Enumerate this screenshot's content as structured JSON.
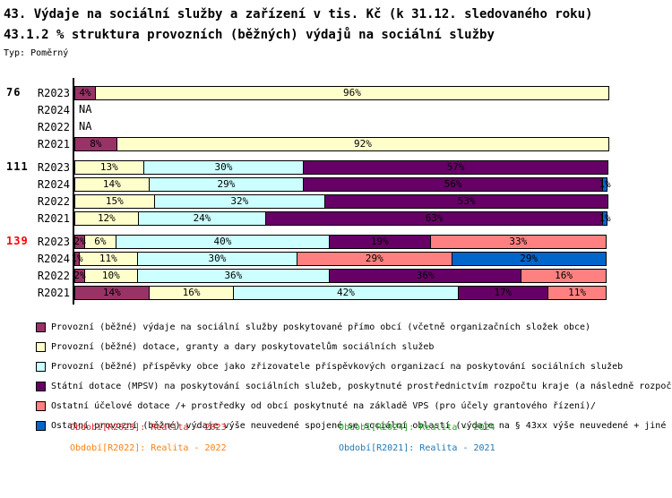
{
  "header": {
    "title": "43. Výdaje na sociální služby a zařízení v tis. Kč (k 31.12. sledovaného roku)",
    "subtitle": "43.1.2 % struktura provozních (běžných) výdajů na sociální služby",
    "type_label": "Typ: Poměrný"
  },
  "na_label": "NA",
  "chart_data": {
    "type": "bar",
    "stacked": true,
    "orientation": "horizontal",
    "unit": "%",
    "xlim": [
      0,
      100
    ],
    "grid": false,
    "legend_position": "bottom",
    "series_names": [
      "Provozní (běžné) výdaje na sociální služby poskytované přímo obcí (včetně organizačních složek obce)",
      "Provozní (běžné) dotace, granty a dary poskytovatelům sociálních služeb",
      "Provozní (běžné) příspěvky obce jako zřizovatele příspěvkových organizací na poskytování sociálních služeb",
      "Státní dotace (MPSV) na poskytování sociálních služeb, poskytnuté prostřednictvím rozpočtu kraje (a následně rozpoč",
      "Ostatní účelové dotace /+ prostředky od obcí poskytnuté na základě VPS (pro účely grantového řízení)/",
      "Ostatní provozní (běžné) výdaje výše neuvedené spojené se sociální oblastí (výdaje na § 43xx výše neuvedené + jiné"
    ],
    "series_colors": [
      "#993366",
      "#FFFFCC",
      "#CCFFFF",
      "#660066",
      "#FF8080",
      "#0066CC"
    ],
    "groups": [
      {
        "label": "76",
        "label_color": "#000000",
        "rows": [
          {
            "label": "R2023",
            "values": [
              4,
              96,
              0,
              0,
              0,
              0
            ]
          },
          {
            "label": "R2024",
            "na": true
          },
          {
            "label": "R2022",
            "na": true
          },
          {
            "label": "R2021",
            "values": [
              8,
              92,
              0,
              0,
              0,
              0
            ]
          }
        ]
      },
      {
        "label": "111",
        "label_color": "#000000",
        "rows": [
          {
            "label": "R2023",
            "values": [
              0,
              13,
              30,
              57,
              0,
              0
            ]
          },
          {
            "label": "R2024",
            "values": [
              0,
              14,
              29,
              56,
              0,
              1
            ]
          },
          {
            "label": "R2022",
            "values": [
              0,
              15,
              32,
              53,
              0,
              0
            ]
          },
          {
            "label": "R2021",
            "values": [
              0,
              12,
              24,
              63,
              0,
              1
            ]
          }
        ]
      },
      {
        "label": "139",
        "label_color": "#FF0000",
        "rows": [
          {
            "label": "R2023",
            "values": [
              2,
              6,
              40,
              19,
              33,
              0
            ]
          },
          {
            "label": "R2024",
            "values": [
              1,
              11,
              30,
              0,
              29,
              29
            ]
          },
          {
            "label": "R2022",
            "values": [
              2,
              10,
              36,
              36,
              16,
              0
            ]
          },
          {
            "label": "R2021",
            "values": [
              14,
              16,
              42,
              17,
              11,
              0
            ]
          }
        ]
      }
    ]
  },
  "legend": {
    "items": [
      {
        "label": "Provozní (běžné) výdaje na sociální služby poskytované přímo obcí (včetně organizačních složek obce)",
        "color": "#993366"
      },
      {
        "label": "Provozní (běžné) dotace, granty a dary poskytovatelům sociálních služeb",
        "color": "#FFFFCC"
      },
      {
        "label": "Provozní (běžné) příspěvky obce jako zřizovatele příspěvkových organizací na poskytování sociálních služeb",
        "color": "#CCFFFF"
      },
      {
        "label": "Státní dotace (MPSV) na poskytování sociálních služeb, poskytnuté prostřednictvím rozpočtu kraje (a následně rozpoč",
        "color": "#660066"
      },
      {
        "label": "Ostatní účelové dotace /+ prostředky od obcí poskytnuté na základě VPS (pro účely grantového řízení)/",
        "color": "#FF8080"
      },
      {
        "label": "Ostatní provozní (běžné) výdaje výše neuvedené spojené se sociální oblastí (výdaje na § 43xx výše neuvedené + jiné",
        "color": "#0066CC"
      }
    ]
  },
  "footer": {
    "periods": [
      {
        "text": "Období[R2023]: Realita - 2023",
        "color": "#d62728"
      },
      {
        "text": "Období[R2024]: Realita - 2024",
        "color": "#2ca02c"
      },
      {
        "text": "Období[R2022]: Realita - 2022",
        "color": "#ff7f0e"
      },
      {
        "text": "Období[R2021]: Realita - 2021",
        "color": "#1f77b4"
      }
    ]
  }
}
